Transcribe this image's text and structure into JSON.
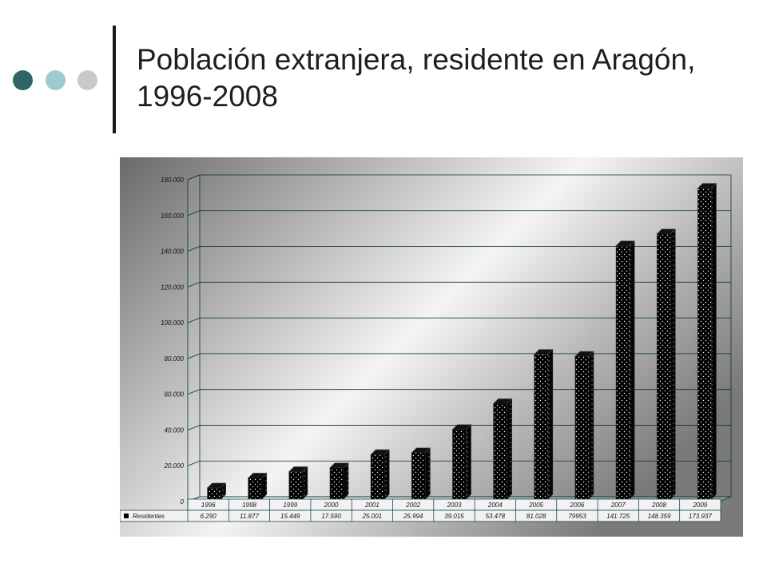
{
  "slide": {
    "title": "Población extranjera, residente en Aragón, 1996-2008",
    "accent_colors": [
      "#2f6567",
      "#9ccbd0",
      "#c9c9c9"
    ]
  },
  "chart_data": {
    "type": "bar",
    "title": "",
    "xlabel": "",
    "ylabel": "",
    "ylim": [
      0,
      180000
    ],
    "yticks": [
      "0",
      "20.000",
      "40.000",
      "60.000",
      "80.000",
      "100.000",
      "120.000",
      "140.000",
      "160.000",
      "180.000"
    ],
    "categories": [
      "1996",
      "1998",
      "1999",
      "2000",
      "2001",
      "2002",
      "2003",
      "2004",
      "2005",
      "2006",
      "2007",
      "2008",
      "2009"
    ],
    "series": [
      {
        "name": "Residentes",
        "values": [
          6290,
          11877,
          15449,
          17590,
          25001,
          25994,
          39015,
          53478,
          81028,
          79953,
          141725,
          148359,
          173937
        ],
        "labels": [
          "6.290",
          "11.877",
          "15.449",
          "17.590",
          "25.001",
          "25.994",
          "39.015",
          "53.478",
          "81.028",
          "79953",
          "141.725",
          "148.359",
          "173.937"
        ]
      }
    ],
    "grid": true,
    "legend": "data-table-bottom",
    "bar_color": "#000000",
    "bar_pattern": "white-dots"
  }
}
